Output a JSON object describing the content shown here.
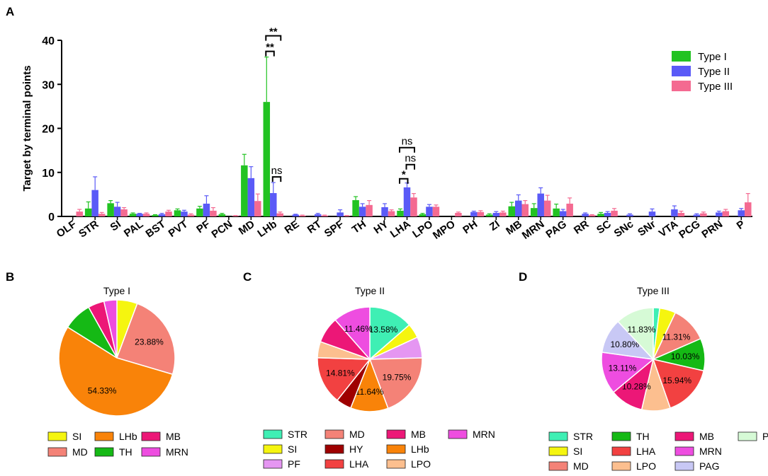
{
  "chart_data": [
    {
      "panel": "A",
      "type": "bar",
      "ylabel": "Target by terminal points",
      "ylim": [
        0,
        40
      ],
      "yticks": [
        0,
        10,
        20,
        30,
        40
      ],
      "categories": [
        "OLF",
        "STR",
        "SI",
        "PAL",
        "BST",
        "PVT",
        "PF",
        "PCN",
        "MD",
        "LHb",
        "RE",
        "RT",
        "SPF",
        "TH",
        "HY",
        "LHA",
        "LPO",
        "MPO",
        "PH",
        "ZI",
        "MB",
        "MRN",
        "PAG",
        "RR",
        "SC",
        "SNc",
        "SNr",
        "VTA",
        "PCG",
        "PRN",
        "P"
      ],
      "series": [
        {
          "name": "Type I",
          "color": "#22c322",
          "values": [
            0,
            1.8,
            3.0,
            0.6,
            0.3,
            1.4,
            1.8,
            0.5,
            11.6,
            26.0,
            0,
            0,
            0,
            3.7,
            0,
            1.3,
            0.5,
            0,
            0,
            0.4,
            2.3,
            1.9,
            1.8,
            0,
            0.6,
            0,
            0,
            0,
            0,
            0,
            0
          ],
          "errors": [
            0,
            1.5,
            0.6,
            0.2,
            0.1,
            0.3,
            0.5,
            0.2,
            2.5,
            10.2,
            0,
            0,
            0,
            0.8,
            0,
            0.4,
            0.2,
            0,
            0,
            0.2,
            0.9,
            1.0,
            1.0,
            0,
            0.3,
            0,
            0,
            0,
            0,
            0,
            0
          ]
        },
        {
          "name": "Type II",
          "color": "#5a5af7",
          "values": [
            0,
            6.0,
            2.2,
            0.6,
            0.5,
            1.1,
            2.9,
            0,
            8.7,
            5.3,
            0.4,
            0.5,
            0.9,
            2.2,
            2.1,
            6.6,
            2.2,
            0,
            1.0,
            0.8,
            3.6,
            5.2,
            1.2,
            0.6,
            0.8,
            0.4,
            1.1,
            1.6,
            0.4,
            0.9,
            1.4
          ],
          "errors": [
            0,
            3.0,
            1.0,
            0.1,
            0.2,
            0.3,
            1.8,
            0,
            2.6,
            2.4,
            0.1,
            0.2,
            0.6,
            0.7,
            0.8,
            1.0,
            0.5,
            0,
            0.2,
            0.3,
            1.3,
            1.3,
            0.4,
            0.2,
            0.3,
            0.2,
            0.6,
            0.8,
            0.2,
            0.3,
            0.4
          ]
        },
        {
          "name": "Type III",
          "color": "#f46a91",
          "values": [
            1.1,
            0.6,
            1.6,
            0.6,
            1.1,
            0.4,
            1.3,
            0.1,
            3.5,
            0.7,
            0.2,
            0.2,
            0.1,
            2.6,
            1.2,
            4.3,
            2.2,
            0.8,
            1.0,
            0.9,
            2.8,
            3.6,
            2.9,
            0.3,
            1.3,
            0,
            0,
            0.8,
            0.7,
            1.2,
            3.2
          ],
          "errors": [
            0.5,
            0.3,
            0.4,
            0.2,
            0.3,
            0.2,
            0.7,
            0.1,
            1.6,
            0.3,
            0.1,
            0.1,
            0.1,
            1.0,
            0.3,
            0.9,
            0.4,
            0.2,
            0.3,
            0.3,
            0.8,
            1.2,
            1.3,
            0.1,
            0.5,
            0,
            0,
            0.4,
            0.3,
            0.4,
            2.0
          ]
        }
      ],
      "annotations": [
        {
          "label": "**",
          "from": [
            9,
            0
          ],
          "to": [
            9,
            1
          ]
        },
        {
          "label": "**",
          "from": [
            9,
            0
          ],
          "to": [
            9,
            2
          ]
        },
        {
          "label": "ns",
          "from": [
            9,
            1
          ],
          "to": [
            9,
            2
          ]
        },
        {
          "label": "*",
          "from": [
            15,
            0
          ],
          "to": [
            15,
            1
          ]
        },
        {
          "label": "ns",
          "from": [
            15,
            1
          ],
          "to": [
            15,
            2
          ]
        },
        {
          "label": "ns",
          "from": [
            15,
            0
          ],
          "to": [
            15,
            2
          ]
        }
      ],
      "legend_position": "top-right"
    },
    {
      "panel": "B",
      "type": "pie",
      "title": "Type I",
      "slices": [
        {
          "name": "SI",
          "value": 5.7,
          "color": "#f5f50f",
          "label": ""
        },
        {
          "name": "MD",
          "value": 23.88,
          "color": "#f48277",
          "label": "23.88%"
        },
        {
          "name": "LHb",
          "value": 54.33,
          "color": "#f98309",
          "label": "54.33%"
        },
        {
          "name": "TH",
          "value": 8.0,
          "color": "#15b915",
          "label": ""
        },
        {
          "name": "MB",
          "value": 4.5,
          "color": "#ec1777",
          "label": ""
        },
        {
          "name": "MRN",
          "value": 3.59,
          "color": "#ee4de0",
          "label": ""
        }
      ],
      "legend": [
        "SI",
        "LHb",
        "MB",
        "MD",
        "TH",
        "MRN"
      ],
      "legend_cols": 3
    },
    {
      "panel": "C",
      "type": "pie",
      "title": "Type II",
      "slices": [
        {
          "name": "STR",
          "value": 13.58,
          "color": "#3fefb4",
          "label": "13.58%"
        },
        {
          "name": "SI",
          "value": 4.5,
          "color": "#f5f50f",
          "label": ""
        },
        {
          "name": "PF",
          "value": 6.5,
          "color": "#e596f2",
          "label": ""
        },
        {
          "name": "MD",
          "value": 19.75,
          "color": "#f48277",
          "label": "19.75%"
        },
        {
          "name": "LHb",
          "value": 11.64,
          "color": "#f98309",
          "label": "11.64%"
        },
        {
          "name": "HY",
          "value": 4.7,
          "color": "#9e0000",
          "label": ""
        },
        {
          "name": "LHA",
          "value": 14.81,
          "color": "#f24141",
          "label": "14.81%"
        },
        {
          "name": "LPO",
          "value": 5.0,
          "color": "#fcbf8f",
          "label": ""
        },
        {
          "name": "MB",
          "value": 8.06,
          "color": "#ec1777",
          "label": ""
        },
        {
          "name": "MRN",
          "value": 11.46,
          "color": "#ee4de0",
          "label": "11.46%"
        }
      ],
      "legend": [
        "STR",
        "MD",
        "MB",
        "MRN",
        "SI",
        "HY",
        "LHb",
        "PF",
        "LHA",
        "LPO"
      ],
      "legend_cols": 4
    },
    {
      "panel": "D",
      "type": "pie",
      "title": "Type III",
      "slices": [
        {
          "name": "STR",
          "value": 2.0,
          "color": "#3fefb4",
          "label": ""
        },
        {
          "name": "SI",
          "value": 5.0,
          "color": "#f5f50f",
          "label": ""
        },
        {
          "name": "MD",
          "value": 11.31,
          "color": "#f48277",
          "label": "11.31%"
        },
        {
          "name": "TH",
          "value": 10.03,
          "color": "#15b915",
          "label": "10.03%"
        },
        {
          "name": "LHA",
          "value": 15.94,
          "color": "#f24141",
          "label": "15.94%"
        },
        {
          "name": "LPO",
          "value": 8.87,
          "color": "#fcbf8f",
          "label": ""
        },
        {
          "name": "MB",
          "value": 10.28,
          "color": "#ec1777",
          "label": "10.28%"
        },
        {
          "name": "MRN",
          "value": 13.11,
          "color": "#ee4de0",
          "label": "13.11%"
        },
        {
          "name": "PAG",
          "value": 10.8,
          "color": "#c8c8f5",
          "label": "10.80%"
        },
        {
          "name": "P",
          "value": 11.83,
          "color": "#d6fad6",
          "label": "11.83%"
        }
      ],
      "legend": [
        "STR",
        "TH",
        "MB",
        "P",
        "SI",
        "LHA",
        "MRN",
        "MD",
        "LPO",
        "PAG"
      ],
      "legend_cols": 4
    }
  ]
}
